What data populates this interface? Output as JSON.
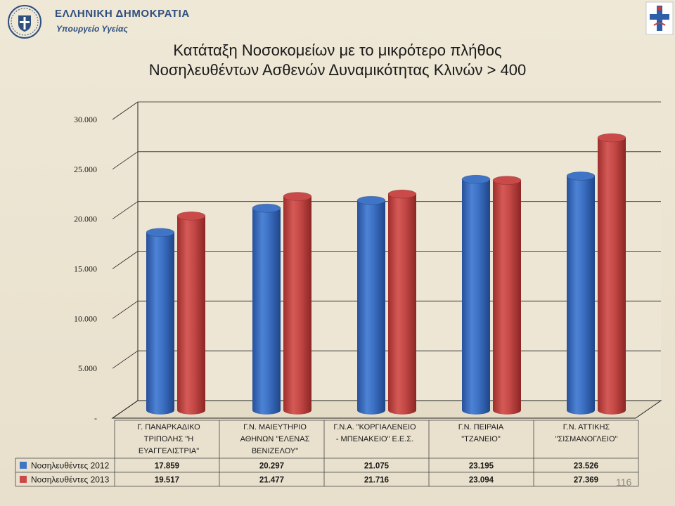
{
  "header": {
    "gov_title": "ΕΛΛΗΝΙΚΗ ΔΗΜΟΚΡΑΤΙΑ",
    "gov_subtitle": "Υπουργείο Υγείας"
  },
  "title_line1": "Κατάταξη Νοσοκομείων με το μικρότερο πλήθος",
  "title_line2": "Νοσηλευθέντων Ασθενών Δυναμικότητας Κλινών > 400",
  "page_number": "116",
  "colors": {
    "series1": "#3f74c6",
    "series2": "#c94a48"
  },
  "chart_data": {
    "type": "bar",
    "title": "Κατάταξη Νοσοκομείων με το μικρότερο πλήθος Νοσηλευθέντων Ασθενών Δυναμικότητας Κλινών > 400",
    "categories": [
      [
        "Γ. ΠΑΝΑΡΚΑΔΙΚΟ",
        "ΤΡΙΠΟΛΗΣ \"Η",
        "ΕΥΑΓΓΕΛΙΣΤΡΙΑ\""
      ],
      [
        "Γ.Ν. ΜΑΙΕΥΤΗΡΙΟ",
        "ΑΘΗΝΩΝ \"ΕΛΕΝΑΣ",
        "ΒΕΝΙΖΕΛΟΥ\""
      ],
      [
        "Γ.Ν.Α. \"ΚΟΡΓΙΑΛΕΝΕΙΟ",
        "- ΜΠΕΝΑΚΕΙΟ\" Ε.Ε.Σ."
      ],
      [
        "Γ.Ν. ΠΕΙΡΑΙΑ",
        "\"ΤΖΑΝΕΙΟ\""
      ],
      [
        "Γ.Ν. ΑΤΤΙΚΗΣ",
        "\"ΣΙΣΜΑΝΟΓΛΕΙΟ\""
      ]
    ],
    "series": [
      {
        "name": "Νοσηλευθέντες 2012",
        "values": [
          17859,
          20297,
          21075,
          23195,
          23526
        ],
        "labels": [
          "17.859",
          "20.297",
          "21.075",
          "23.195",
          "23.526"
        ]
      },
      {
        "name": "Νοσηλευθέντες 2013",
        "values": [
          19517,
          21477,
          21716,
          23094,
          27369
        ],
        "labels": [
          "19.517",
          "21.477",
          "21.716",
          "23.094",
          "27.369"
        ]
      }
    ],
    "ylim": [
      0,
      30000
    ],
    "yticks": [
      "-",
      "5.000",
      "10.000",
      "15.000",
      "20.000",
      "25.000",
      "30.000"
    ],
    "grid": true,
    "legend": "data-table below chart"
  }
}
